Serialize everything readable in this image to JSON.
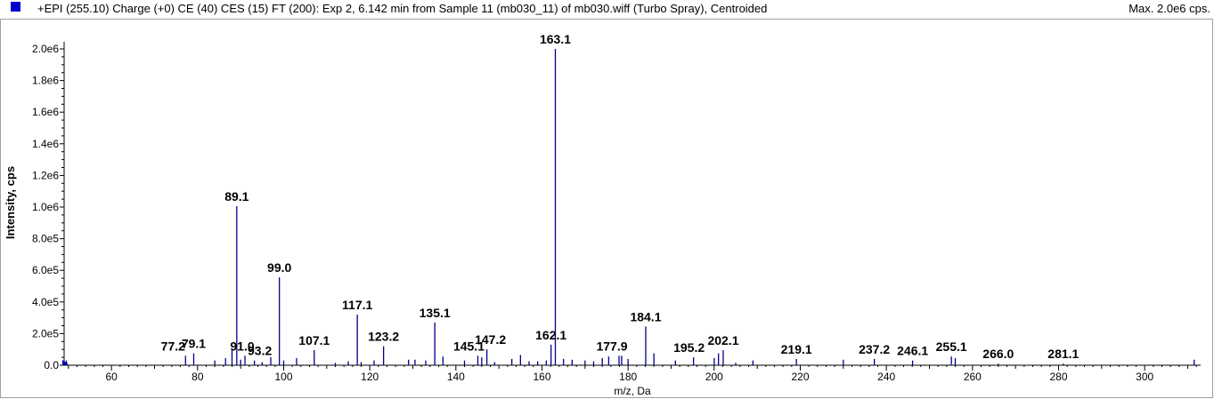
{
  "header": {
    "title": "+EPI (255.10) Charge (+0) CE (40) CES (15) FT (200): Exp 2, 6.142 min from Sample 11 (mb030_11) of mb030.wiff (Turbo Spray), Centroided",
    "max_label": "Max. 2.0e6 cps.",
    "legend_color": "#0000cc"
  },
  "chart_data": {
    "type": "bar",
    "title": "",
    "xlabel": "m/z, Da",
    "ylabel": "Intensity, cps",
    "xlim": [
      49,
      313
    ],
    "ylim": [
      0,
      2000000
    ],
    "grid": false,
    "bar_color": "#00008b",
    "x_ticks": [
      60,
      80,
      100,
      120,
      140,
      160,
      180,
      200,
      220,
      240,
      260,
      280,
      300
    ],
    "y_ticks": [
      0,
      200000,
      400000,
      600000,
      800000,
      1000000,
      1200000,
      1400000,
      1600000,
      1800000,
      2000000
    ],
    "y_tick_labels": [
      "0.0",
      "2.0e5",
      "4.0e5",
      "6.0e5",
      "8.0e5",
      "1.0e6",
      "1.2e6",
      "1.4e6",
      "1.6e6",
      "1.8e6",
      "2.0e6"
    ],
    "peaks": [
      {
        "x": 49.5,
        "y": 30000
      },
      {
        "x": 77.2,
        "y": 60000,
        "label": "77.2"
      },
      {
        "x": 79.1,
        "y": 75000,
        "label": "79.1"
      },
      {
        "x": 84.0,
        "y": 30000
      },
      {
        "x": 86.5,
        "y": 45000
      },
      {
        "x": 88.0,
        "y": 95000
      },
      {
        "x": 89.1,
        "y": 1005000,
        "label": "89.1"
      },
      {
        "x": 90.0,
        "y": 35000
      },
      {
        "x": 91.0,
        "y": 60000,
        "label": "91.0"
      },
      {
        "x": 93.2,
        "y": 30000,
        "label": "93.2"
      },
      {
        "x": 95.0,
        "y": 20000
      },
      {
        "x": 97.0,
        "y": 50000
      },
      {
        "x": 99.0,
        "y": 555000,
        "label": "99.0"
      },
      {
        "x": 100.0,
        "y": 30000
      },
      {
        "x": 103.0,
        "y": 45000
      },
      {
        "x": 107.1,
        "y": 95000,
        "label": "107.1"
      },
      {
        "x": 112.0,
        "y": 15000
      },
      {
        "x": 115.0,
        "y": 25000
      },
      {
        "x": 117.1,
        "y": 320000,
        "label": "117.1"
      },
      {
        "x": 118.0,
        "y": 20000
      },
      {
        "x": 121.0,
        "y": 30000
      },
      {
        "x": 123.2,
        "y": 120000,
        "label": "123.2"
      },
      {
        "x": 129.0,
        "y": 35000
      },
      {
        "x": 130.5,
        "y": 35000
      },
      {
        "x": 133.0,
        "y": 30000
      },
      {
        "x": 135.1,
        "y": 270000,
        "label": "135.1"
      },
      {
        "x": 137.0,
        "y": 55000
      },
      {
        "x": 142.0,
        "y": 30000
      },
      {
        "x": 145.1,
        "y": 60000,
        "label": "145.1"
      },
      {
        "x": 146.0,
        "y": 50000
      },
      {
        "x": 147.2,
        "y": 100000,
        "label": "147.2"
      },
      {
        "x": 149.0,
        "y": 20000
      },
      {
        "x": 153.0,
        "y": 40000
      },
      {
        "x": 155.0,
        "y": 65000
      },
      {
        "x": 157.0,
        "y": 25000
      },
      {
        "x": 159.0,
        "y": 25000
      },
      {
        "x": 161.0,
        "y": 30000
      },
      {
        "x": 162.1,
        "y": 130000,
        "label": "162.1"
      },
      {
        "x": 163.1,
        "y": 2000000,
        "label": "163.1"
      },
      {
        "x": 165.0,
        "y": 40000
      },
      {
        "x": 167.0,
        "y": 35000
      },
      {
        "x": 170.0,
        "y": 30000
      },
      {
        "x": 172.0,
        "y": 25000
      },
      {
        "x": 174.0,
        "y": 45000
      },
      {
        "x": 175.5,
        "y": 55000
      },
      {
        "x": 177.9,
        "y": 60000,
        "label": "177.9"
      },
      {
        "x": 178.5,
        "y": 60000
      },
      {
        "x": 180.0,
        "y": 40000
      },
      {
        "x": 184.1,
        "y": 245000,
        "label": "184.1"
      },
      {
        "x": 186.0,
        "y": 75000
      },
      {
        "x": 191.0,
        "y": 30000
      },
      {
        "x": 195.2,
        "y": 50000,
        "label": "195.2"
      },
      {
        "x": 200.0,
        "y": 45000
      },
      {
        "x": 201.0,
        "y": 75000
      },
      {
        "x": 202.1,
        "y": 95000,
        "label": "202.1"
      },
      {
        "x": 205.0,
        "y": 15000
      },
      {
        "x": 209.0,
        "y": 30000
      },
      {
        "x": 219.1,
        "y": 40000,
        "label": "219.1"
      },
      {
        "x": 230.0,
        "y": 35000
      },
      {
        "x": 237.2,
        "y": 40000,
        "label": "237.2"
      },
      {
        "x": 246.1,
        "y": 30000,
        "label": "246.1"
      },
      {
        "x": 255.1,
        "y": 55000,
        "label": "255.1"
      },
      {
        "x": 256.0,
        "y": 45000
      },
      {
        "x": 266.0,
        "y": 10000,
        "label": "266.0"
      },
      {
        "x": 281.1,
        "y": 10000,
        "label": "281.1"
      },
      {
        "x": 311.5,
        "y": 35000
      }
    ]
  }
}
